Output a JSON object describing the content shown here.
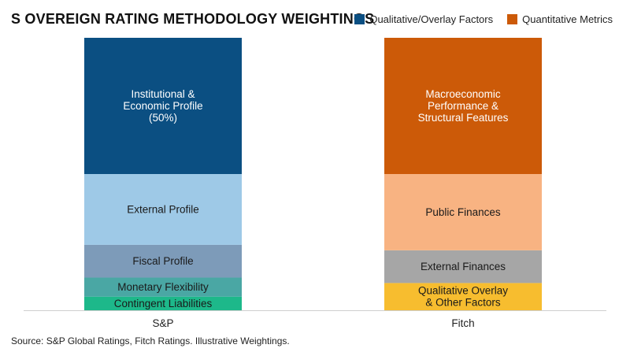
{
  "chart_data": {
    "type": "bar",
    "stacked": true,
    "title": "S OVEREIGN RATING METHODOLOGY WEIGHTINGS",
    "categories": [
      "S&P",
      "Fitch"
    ],
    "legend": {
      "placement": "top-right",
      "entries": [
        {
          "name": "Qualitative/Overlay Factors",
          "color": "#0b4f82"
        },
        {
          "name": "Quantitative Metrics",
          "color": "#cc5a08"
        }
      ]
    },
    "bars": [
      {
        "category": "S&P",
        "segments": [
          {
            "label": "Contingent Liabilities",
            "value": 5,
            "color": "#1db88a",
            "text_color": "#1a1a1a"
          },
          {
            "label": "Monetary Flexibility",
            "value": 7,
            "color": "#4aa7a4",
            "text_color": "#1a1a1a"
          },
          {
            "label": "Fiscal Profile",
            "value": 12,
            "color": "#7d9bb9",
            "text_color": "#1a1a1a"
          },
          {
            "label": "External Profile",
            "value": 26,
            "color": "#9ec9e7",
            "text_color": "#1a1a1a"
          },
          {
            "label": "Institutional &\nEconomic Profile\n(50%)",
            "value": 50,
            "color": "#0b4f82",
            "text_color": "#ffffff"
          }
        ]
      },
      {
        "category": "Fitch",
        "segments": [
          {
            "label": "Qualitative Overlay\n& Other Factors",
            "value": 10,
            "color": "#f7bd2f",
            "text_color": "#1a1a1a"
          },
          {
            "label": "External Finances",
            "value": 12,
            "color": "#a6a6a6",
            "text_color": "#1a1a1a"
          },
          {
            "label": "Public Finances",
            "value": 28,
            "color": "#f8b382",
            "text_color": "#1a1a1a"
          },
          {
            "label": "Macroeconomic\nPerformance &\nStructural Features",
            "value": 50,
            "color": "#cc5a08",
            "text_color": "#ffffff"
          }
        ]
      }
    ],
    "ylim": [
      0,
      100
    ],
    "grid": false
  },
  "footer": {
    "source": "Source: S&P Global Ratings, Fitch Ratings. Illustrative Weightings."
  }
}
